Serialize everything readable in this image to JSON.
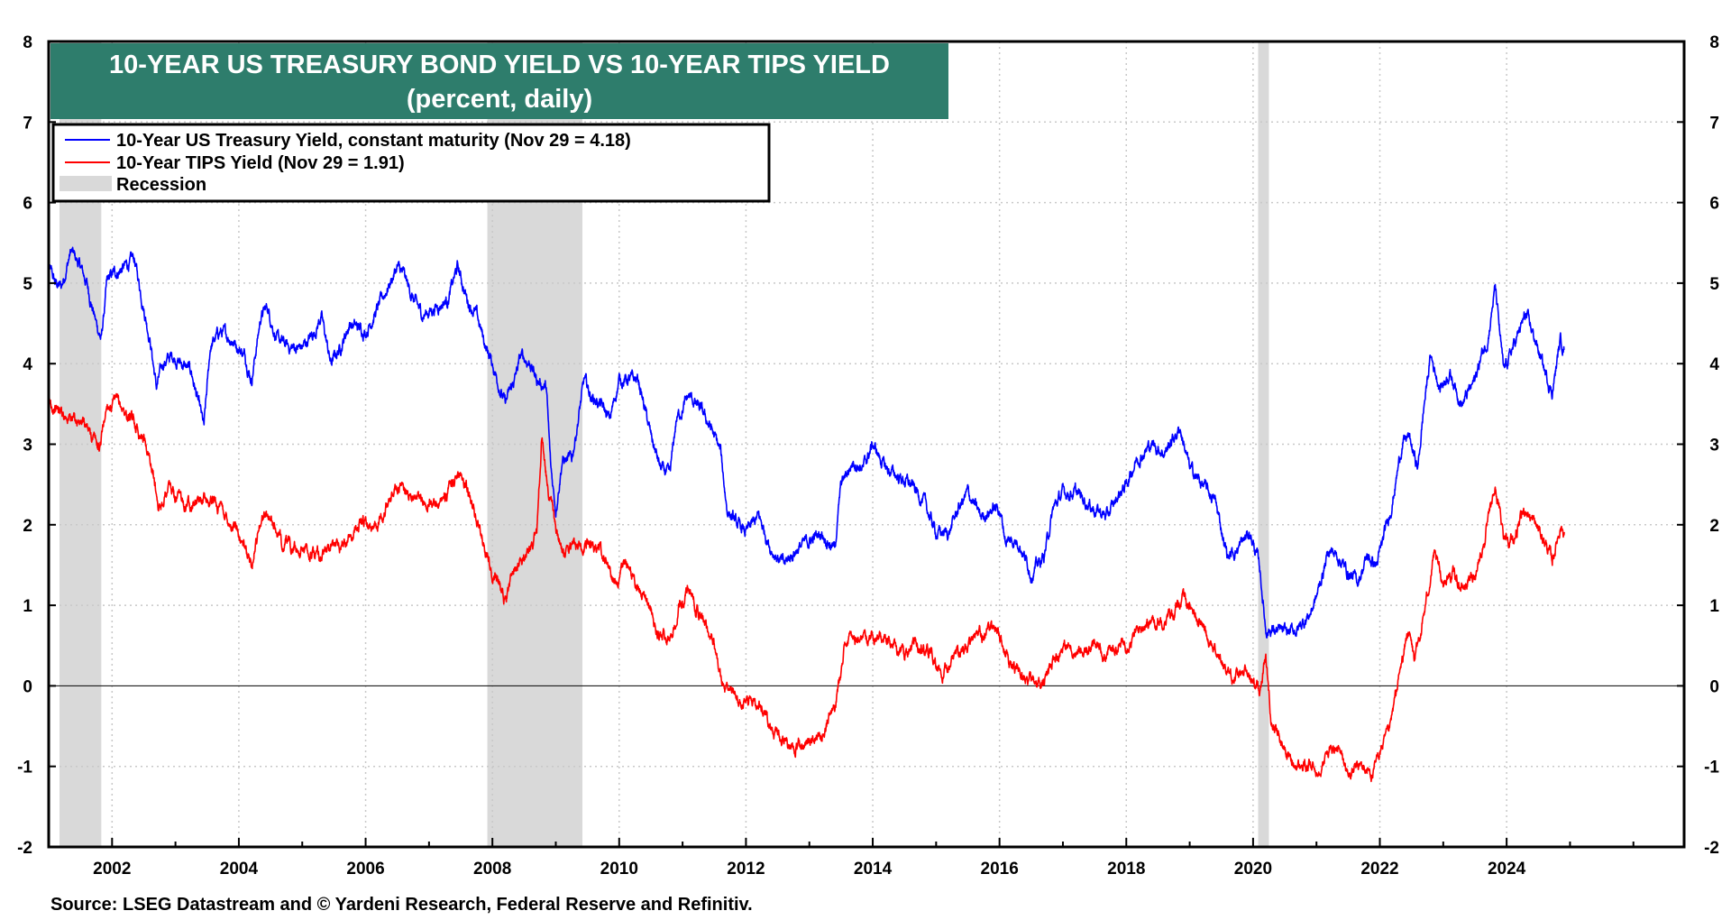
{
  "chart_data": {
    "type": "line",
    "title": "10-YEAR US TREASURY BOND YIELD VS 10-YEAR TIPS YIELD",
    "subtitle": "(percent, daily)",
    "source": "Source: LSEG Datastream and © Yardeni Research, Federal Reserve and Refinitiv.",
    "xlim": [
      2001.0,
      2026.8
    ],
    "ylim": [
      -2,
      8
    ],
    "x_ticks": [
      2002,
      2004,
      2006,
      2008,
      2010,
      2012,
      2014,
      2016,
      2018,
      2020,
      2022,
      2024
    ],
    "y_ticks": [
      -2,
      -1,
      0,
      1,
      2,
      3,
      4,
      5,
      6,
      7,
      8
    ],
    "grid": true,
    "legend_position": "top-left",
    "recessions": [
      {
        "start": 2001.17,
        "end": 2001.83
      },
      {
        "start": 2007.92,
        "end": 2009.42
      },
      {
        "start": 2020.08,
        "end": 2020.25
      }
    ],
    "legend": {
      "treasury": "10-Year US Treasury Yield, constant maturity (Nov 29 = 4.18)",
      "tips": "10-Year TIPS Yield (Nov 29 = 1.91)",
      "recession": "Recession"
    },
    "series": [
      {
        "name": "10-Year US Treasury Yield, constant maturity (Nov 29 = 4.18)",
        "color": "#0000ff",
        "points": [
          [
            2001.0,
            5.2
          ],
          [
            2001.1,
            5.0
          ],
          [
            2001.2,
            4.95
          ],
          [
            2001.35,
            5.4
          ],
          [
            2001.5,
            5.2
          ],
          [
            2001.6,
            5.0
          ],
          [
            2001.75,
            4.5
          ],
          [
            2001.83,
            4.3
          ],
          [
            2001.92,
            5.0
          ],
          [
            2002.0,
            5.1
          ],
          [
            2002.2,
            5.2
          ],
          [
            2002.35,
            5.3
          ],
          [
            2002.5,
            4.7
          ],
          [
            2002.6,
            4.3
          ],
          [
            2002.7,
            3.7
          ],
          [
            2002.8,
            4.0
          ],
          [
            2002.95,
            4.1
          ],
          [
            2003.1,
            4.0
          ],
          [
            2003.25,
            3.9
          ],
          [
            2003.45,
            3.2
          ],
          [
            2003.55,
            4.2
          ],
          [
            2003.7,
            4.4
          ],
          [
            2003.9,
            4.3
          ],
          [
            2004.1,
            4.1
          ],
          [
            2004.2,
            3.8
          ],
          [
            2004.35,
            4.6
          ],
          [
            2004.45,
            4.7
          ],
          [
            2004.6,
            4.3
          ],
          [
            2004.8,
            4.2
          ],
          [
            2005.0,
            4.2
          ],
          [
            2005.2,
            4.4
          ],
          [
            2005.3,
            4.6
          ],
          [
            2005.45,
            4.0
          ],
          [
            2005.6,
            4.2
          ],
          [
            2005.75,
            4.5
          ],
          [
            2006.0,
            4.4
          ],
          [
            2006.2,
            4.7
          ],
          [
            2006.5,
            5.2
          ],
          [
            2006.6,
            5.1
          ],
          [
            2006.75,
            4.8
          ],
          [
            2006.9,
            4.6
          ],
          [
            2007.1,
            4.7
          ],
          [
            2007.3,
            4.8
          ],
          [
            2007.45,
            5.2
          ],
          [
            2007.6,
            4.8
          ],
          [
            2007.75,
            4.6
          ],
          [
            2007.9,
            4.2
          ],
          [
            2008.0,
            4.0
          ],
          [
            2008.2,
            3.5
          ],
          [
            2008.35,
            3.8
          ],
          [
            2008.45,
            4.1
          ],
          [
            2008.6,
            4.0
          ],
          [
            2008.7,
            3.8
          ],
          [
            2008.85,
            3.7
          ],
          [
            2008.92,
            2.7
          ],
          [
            2009.0,
            2.2
          ],
          [
            2009.1,
            2.8
          ],
          [
            2009.25,
            2.8
          ],
          [
            2009.45,
            3.8
          ],
          [
            2009.55,
            3.6
          ],
          [
            2009.7,
            3.5
          ],
          [
            2009.85,
            3.3
          ],
          [
            2010.0,
            3.8
          ],
          [
            2010.2,
            3.8
          ],
          [
            2010.3,
            3.8
          ],
          [
            2010.5,
            3.1
          ],
          [
            2010.65,
            2.7
          ],
          [
            2010.8,
            2.6
          ],
          [
            2010.9,
            3.3
          ],
          [
            2011.1,
            3.6
          ],
          [
            2011.3,
            3.4
          ],
          [
            2011.45,
            3.2
          ],
          [
            2011.6,
            2.9
          ],
          [
            2011.7,
            2.2
          ],
          [
            2011.85,
            2.0
          ],
          [
            2012.0,
            1.9
          ],
          [
            2012.2,
            2.1
          ],
          [
            2012.4,
            1.7
          ],
          [
            2012.6,
            1.5
          ],
          [
            2012.8,
            1.7
          ],
          [
            2013.0,
            1.8
          ],
          [
            2013.2,
            1.9
          ],
          [
            2013.4,
            1.7
          ],
          [
            2013.5,
            2.5
          ],
          [
            2013.7,
            2.8
          ],
          [
            2013.85,
            2.7
          ],
          [
            2014.0,
            3.0
          ],
          [
            2014.2,
            2.7
          ],
          [
            2014.4,
            2.6
          ],
          [
            2014.6,
            2.5
          ],
          [
            2014.8,
            2.3
          ],
          [
            2015.0,
            1.9
          ],
          [
            2015.2,
            1.9
          ],
          [
            2015.35,
            2.2
          ],
          [
            2015.5,
            2.4
          ],
          [
            2015.7,
            2.1
          ],
          [
            2015.9,
            2.2
          ],
          [
            2016.0,
            2.2
          ],
          [
            2016.1,
            1.8
          ],
          [
            2016.3,
            1.8
          ],
          [
            2016.5,
            1.4
          ],
          [
            2016.7,
            1.6
          ],
          [
            2016.85,
            2.2
          ],
          [
            2017.0,
            2.4
          ],
          [
            2017.2,
            2.4
          ],
          [
            2017.5,
            2.2
          ],
          [
            2017.7,
            2.1
          ],
          [
            2017.9,
            2.4
          ],
          [
            2018.0,
            2.5
          ],
          [
            2018.15,
            2.8
          ],
          [
            2018.4,
            3.0
          ],
          [
            2018.6,
            2.9
          ],
          [
            2018.85,
            3.2
          ],
          [
            2019.0,
            2.7
          ],
          [
            2019.2,
            2.5
          ],
          [
            2019.4,
            2.3
          ],
          [
            2019.6,
            1.6
          ],
          [
            2019.75,
            1.7
          ],
          [
            2019.95,
            1.9
          ],
          [
            2020.1,
            1.5
          ],
          [
            2020.2,
            0.7
          ],
          [
            2020.3,
            0.7
          ],
          [
            2020.5,
            0.65
          ],
          [
            2020.7,
            0.7
          ],
          [
            2020.9,
            0.9
          ],
          [
            2021.0,
            1.1
          ],
          [
            2021.2,
            1.7
          ],
          [
            2021.35,
            1.6
          ],
          [
            2021.5,
            1.4
          ],
          [
            2021.65,
            1.3
          ],
          [
            2021.8,
            1.6
          ],
          [
            2021.95,
            1.5
          ],
          [
            2022.05,
            1.8
          ],
          [
            2022.2,
            2.3
          ],
          [
            2022.35,
            3.0
          ],
          [
            2022.45,
            3.1
          ],
          [
            2022.6,
            2.7
          ],
          [
            2022.7,
            3.5
          ],
          [
            2022.8,
            4.1
          ],
          [
            2022.95,
            3.7
          ],
          [
            2023.1,
            3.9
          ],
          [
            2023.3,
            3.5
          ],
          [
            2023.5,
            3.8
          ],
          [
            2023.6,
            4.1
          ],
          [
            2023.7,
            4.3
          ],
          [
            2023.82,
            4.95
          ],
          [
            2023.95,
            3.9
          ],
          [
            2024.1,
            4.2
          ],
          [
            2024.3,
            4.6
          ],
          [
            2024.45,
            4.3
          ],
          [
            2024.6,
            3.9
          ],
          [
            2024.72,
            3.65
          ],
          [
            2024.85,
            4.3
          ],
          [
            2024.91,
            4.18
          ]
        ]
      },
      {
        "name": "10-Year TIPS Yield (Nov 29 = 1.91)",
        "color": "#ff0000",
        "points": [
          [
            2001.0,
            3.5
          ],
          [
            2001.2,
            3.4
          ],
          [
            2001.45,
            3.3
          ],
          [
            2001.6,
            3.2
          ],
          [
            2001.8,
            2.95
          ],
          [
            2001.92,
            3.5
          ],
          [
            2002.1,
            3.5
          ],
          [
            2002.3,
            3.3
          ],
          [
            2002.5,
            3.1
          ],
          [
            2002.6,
            2.8
          ],
          [
            2002.75,
            2.2
          ],
          [
            2002.9,
            2.5
          ],
          [
            2003.0,
            2.3
          ],
          [
            2003.5,
            2.3
          ],
          [
            2003.6,
            2.3
          ],
          [
            2003.8,
            2.1
          ],
          [
            2004.0,
            1.9
          ],
          [
            2004.2,
            1.5
          ],
          [
            2004.35,
            2.1
          ],
          [
            2004.5,
            2.1
          ],
          [
            2004.65,
            1.8
          ],
          [
            2004.85,
            1.7
          ],
          [
            2005.0,
            1.7
          ],
          [
            2005.2,
            1.6
          ],
          [
            2005.45,
            1.7
          ],
          [
            2005.7,
            1.8
          ],
          [
            2005.9,
            2.0
          ],
          [
            2006.1,
            2.0
          ],
          [
            2006.3,
            2.2
          ],
          [
            2006.5,
            2.5
          ],
          [
            2006.7,
            2.4
          ],
          [
            2006.9,
            2.3
          ],
          [
            2007.1,
            2.3
          ],
          [
            2007.3,
            2.4
          ],
          [
            2007.5,
            2.7
          ],
          [
            2007.65,
            2.3
          ],
          [
            2007.85,
            1.8
          ],
          [
            2008.0,
            1.4
          ],
          [
            2008.2,
            1.1
          ],
          [
            2008.35,
            1.5
          ],
          [
            2008.5,
            1.6
          ],
          [
            2008.7,
            1.9
          ],
          [
            2008.78,
            3.1
          ],
          [
            2008.85,
            2.6
          ],
          [
            2009.0,
            1.9
          ],
          [
            2009.15,
            1.6
          ],
          [
            2009.3,
            1.7
          ],
          [
            2009.5,
            1.8
          ],
          [
            2009.7,
            1.7
          ],
          [
            2009.9,
            1.3
          ],
          [
            2010.1,
            1.5
          ],
          [
            2010.3,
            1.2
          ],
          [
            2010.45,
            1.0
          ],
          [
            2010.65,
            0.6
          ],
          [
            2010.8,
            0.5
          ],
          [
            2010.95,
            1.0
          ],
          [
            2011.1,
            1.2
          ],
          [
            2011.3,
            0.8
          ],
          [
            2011.5,
            0.5
          ],
          [
            2011.65,
            0.0
          ],
          [
            2011.8,
            -0.1
          ],
          [
            2012.0,
            -0.2
          ],
          [
            2012.2,
            -0.2
          ],
          [
            2012.4,
            -0.5
          ],
          [
            2012.6,
            -0.7
          ],
          [
            2012.8,
            -0.75
          ],
          [
            2013.0,
            -0.65
          ],
          [
            2013.2,
            -0.6
          ],
          [
            2013.4,
            -0.3
          ],
          [
            2013.55,
            0.5
          ],
          [
            2013.7,
            0.6
          ],
          [
            2013.9,
            0.6
          ],
          [
            2014.1,
            0.6
          ],
          [
            2014.3,
            0.5
          ],
          [
            2014.5,
            0.4
          ],
          [
            2014.7,
            0.5
          ],
          [
            2014.9,
            0.4
          ],
          [
            2015.1,
            0.1
          ],
          [
            2015.3,
            0.4
          ],
          [
            2015.5,
            0.5
          ],
          [
            2015.7,
            0.6
          ],
          [
            2015.9,
            0.7
          ],
          [
            2016.0,
            0.6
          ],
          [
            2016.2,
            0.2
          ],
          [
            2016.4,
            0.1
          ],
          [
            2016.6,
            0.0
          ],
          [
            2016.8,
            0.2
          ],
          [
            2017.0,
            0.5
          ],
          [
            2017.3,
            0.4
          ],
          [
            2017.5,
            0.5
          ],
          [
            2017.7,
            0.4
          ],
          [
            2017.9,
            0.5
          ],
          [
            2018.1,
            0.6
          ],
          [
            2018.3,
            0.8
          ],
          [
            2018.5,
            0.8
          ],
          [
            2018.75,
            0.9
          ],
          [
            2018.9,
            1.1
          ],
          [
            2019.1,
            0.9
          ],
          [
            2019.3,
            0.6
          ],
          [
            2019.5,
            0.3
          ],
          [
            2019.7,
            0.1
          ],
          [
            2019.9,
            0.15
          ],
          [
            2020.1,
            -0.05
          ],
          [
            2020.2,
            0.4
          ],
          [
            2020.28,
            -0.4
          ],
          [
            2020.45,
            -0.7
          ],
          [
            2020.65,
            -1.0
          ],
          [
            2020.85,
            -1.0
          ],
          [
            2021.0,
            -1.05
          ],
          [
            2021.2,
            -0.8
          ],
          [
            2021.35,
            -0.8
          ],
          [
            2021.5,
            -1.1
          ],
          [
            2021.7,
            -1.0
          ],
          [
            2021.9,
            -1.1
          ],
          [
            2022.0,
            -0.8
          ],
          [
            2022.15,
            -0.6
          ],
          [
            2022.3,
            0.1
          ],
          [
            2022.45,
            0.7
          ],
          [
            2022.55,
            0.3
          ],
          [
            2022.7,
            0.9
          ],
          [
            2022.85,
            1.6
          ],
          [
            2023.0,
            1.3
          ],
          [
            2023.15,
            1.4
          ],
          [
            2023.3,
            1.2
          ],
          [
            2023.5,
            1.4
          ],
          [
            2023.65,
            1.8
          ],
          [
            2023.82,
            2.45
          ],
          [
            2023.95,
            1.9
          ],
          [
            2024.1,
            1.8
          ],
          [
            2024.3,
            2.2
          ],
          [
            2024.45,
            2.0
          ],
          [
            2024.6,
            1.8
          ],
          [
            2024.72,
            1.55
          ],
          [
            2024.85,
            2.0
          ],
          [
            2024.91,
            1.91
          ]
        ]
      }
    ]
  }
}
